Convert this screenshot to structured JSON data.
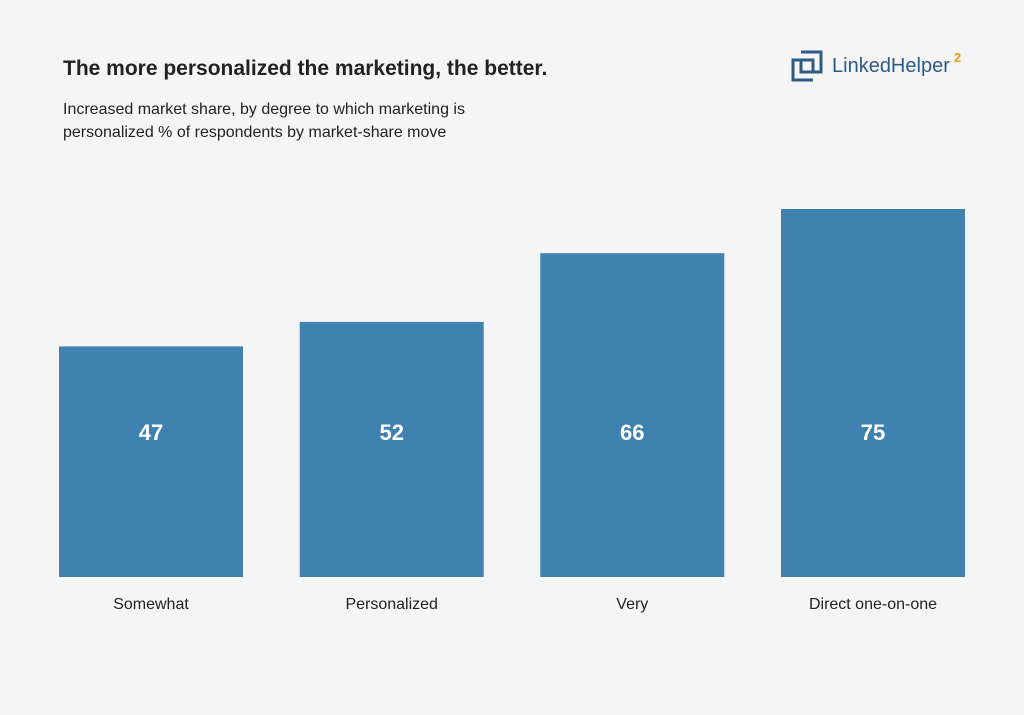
{
  "header": {
    "title": "The more personalized the marketing, the better.",
    "subtitle": "Increased market share, by degree to which marketing is personalized % of respondents by market-share move"
  },
  "logo": {
    "name": "LinkedHelper",
    "superscript": "2",
    "icon": "linked-squares-icon",
    "colors": {
      "primary": "#2c5c86",
      "accent": "#f09a1b"
    }
  },
  "chart_data": {
    "type": "bar",
    "categories": [
      "Somewhat",
      "Personalized",
      "Very",
      "Direct one-on-one"
    ],
    "values": [
      47,
      52,
      66,
      75
    ],
    "data_labels": [
      "47",
      "52",
      "66",
      "75"
    ],
    "title": "The more personalized the marketing, the better.",
    "subtitle": "Increased market share, by degree to which marketing is personalized % of respondents by market-share move",
    "xlabel": "",
    "ylabel": "",
    "ylim": [
      0,
      75
    ],
    "grid": false,
    "legend": "none",
    "colors": {
      "bar": "#3f82b0",
      "label": "#ffffff",
      "axis_text": "#222222"
    }
  }
}
